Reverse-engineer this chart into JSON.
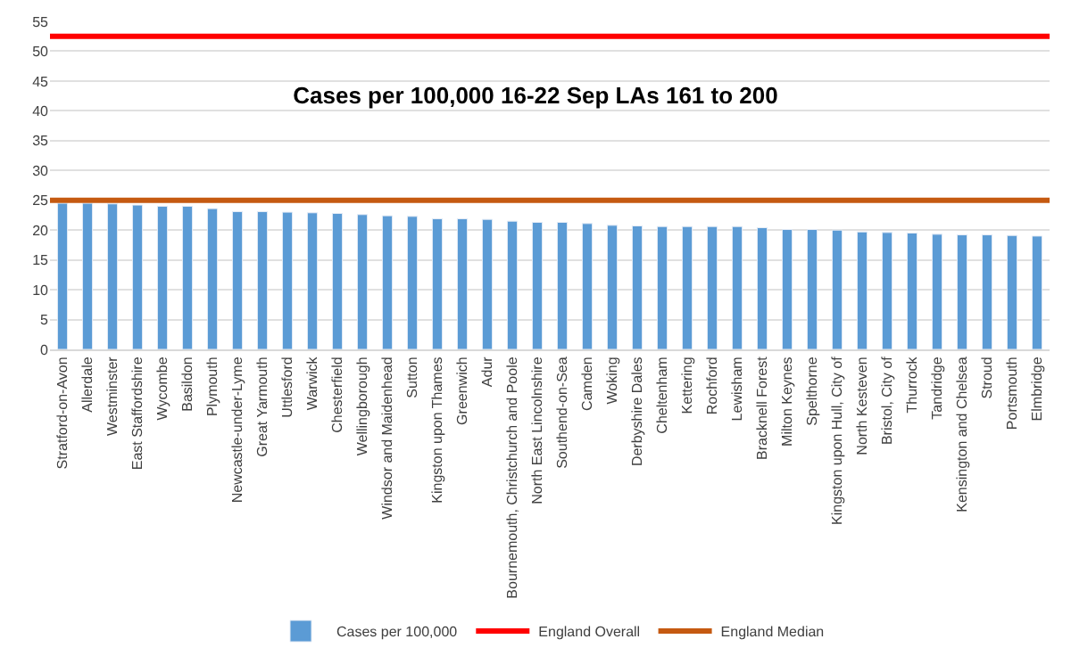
{
  "chart_data": {
    "type": "bar",
    "title": "Cases per 100,000 16-22 Sep LAs 161 to 200",
    "categories": [
      "Stratford-on-Avon",
      "Allerdale",
      "Westminster",
      "East Staffordshire",
      "Wycombe",
      "Basildon",
      "Plymouth",
      "Newcastle-under-Lyme",
      "Great Yarmouth",
      "Uttlesford",
      "Warwick",
      "Chesterfield",
      "Wellingborough",
      "Windsor and Maidenhead",
      "Sutton",
      "Kingston upon Thames",
      "Greenwich",
      "Adur",
      "Bournemouth, Christchurch and Poole",
      "North East Lincolnshire",
      "Southend-on-Sea",
      "Camden",
      "Woking",
      "Derbyshire Dales",
      "Cheltenham",
      "Kettering",
      "Rochford",
      "Lewisham",
      "Bracknell Forest",
      "Milton Keynes",
      "Spelthorne",
      "Kingston upon Hull, City of",
      "North Kesteven",
      "Bristol, City of",
      "Thurrock",
      "Tandridge",
      "Kensington and Chelsea",
      "Stroud",
      "Portsmouth",
      "Elmbridge"
    ],
    "series": [
      {
        "name": "Cases per 100,000",
        "color": "#5b9bd5",
        "values": [
          24.5,
          24.5,
          24.4,
          24.2,
          24.0,
          24.0,
          23.6,
          23.1,
          23.1,
          23.0,
          22.9,
          22.8,
          22.6,
          22.4,
          22.3,
          21.9,
          21.9,
          21.8,
          21.5,
          21.3,
          21.3,
          21.1,
          20.8,
          20.7,
          20.6,
          20.6,
          20.6,
          20.6,
          20.4,
          20.1,
          20.1,
          20.0,
          19.7,
          19.6,
          19.5,
          19.3,
          19.2,
          19.2,
          19.1,
          19.0
        ]
      }
    ],
    "ref_lines": [
      {
        "axis": "y",
        "value": 52.5,
        "label": "England Overall",
        "color": "#ff0000"
      },
      {
        "axis": "y",
        "value": 25.0,
        "label": "England Median",
        "color": "#c55a11"
      }
    ],
    "ylim": [
      0,
      55
    ],
    "yticks": [
      0,
      5,
      10,
      15,
      20,
      25,
      30,
      35,
      40,
      45,
      50,
      55
    ],
    "grid": "y",
    "legend": "bottom"
  }
}
